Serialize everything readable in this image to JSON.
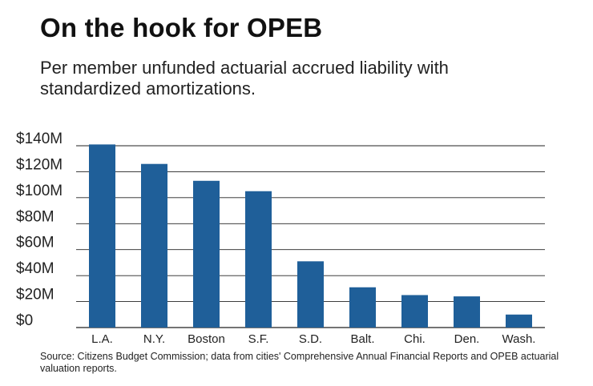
{
  "title": "On the hook for OPEB",
  "subtitle": "Per member unfunded actuarial accrued liability with standardized amortizations.",
  "source": "Source: Citizens Budget Commission; data from cities' Comprehensive Annual Financial Reports and OPEB actuarial valuation reports.",
  "colors": {
    "bar": "#1f5f99",
    "grid": "#222222",
    "text": "#222222"
  },
  "chart_data": {
    "type": "bar",
    "categories": [
      "L.A.",
      "N.Y.",
      "Boston",
      "S.F.",
      "S.D.",
      "Balt.",
      "Chi.",
      "Den.",
      "Wash."
    ],
    "values": [
      141,
      126,
      113,
      105,
      51,
      31,
      25,
      24,
      10
    ],
    "ylim": [
      0,
      140
    ],
    "yticks": [
      0,
      20,
      40,
      60,
      80,
      100,
      120,
      140
    ],
    "ytick_labels": [
      "$0",
      "$20M",
      "$40M",
      "$60M",
      "$80M",
      "$100M",
      "$120M",
      "$140M"
    ],
    "grid": true
  }
}
